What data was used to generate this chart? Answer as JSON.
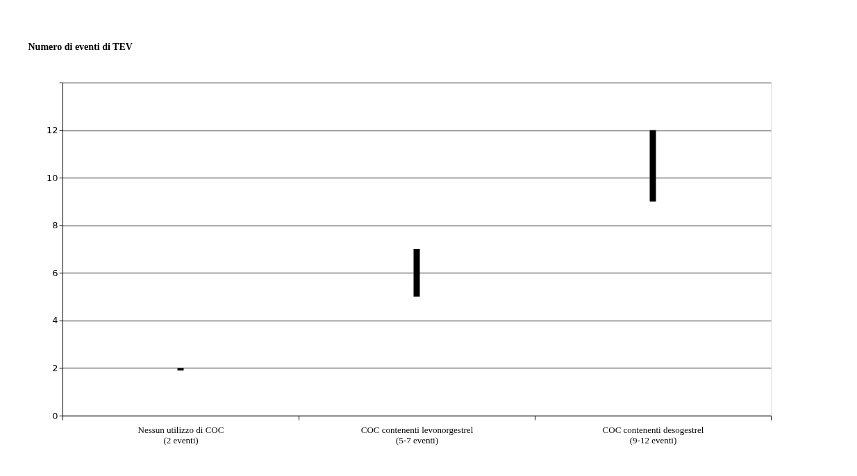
{
  "chart_data": {
    "type": "bar",
    "ylabel": "Numero di eventi di TEV",
    "categories": [
      "Nessun utilizzo di COC\n(2 eventi)",
      "COC contenenti levonorgestrel\n(5-7 eventi)",
      "COC contenenti desogestrel\n(9-12 eventi)"
    ],
    "base": [
      1.9,
      5,
      9
    ],
    "values": [
      0.1,
      2,
      3
    ],
    "color": "#000000",
    "ylim": [
      0,
      14
    ],
    "yticks": [
      0,
      2,
      4,
      6,
      8,
      10,
      12,
      {
        "value": 14,
        "label": null
      }
    ],
    "grid": "y"
  }
}
